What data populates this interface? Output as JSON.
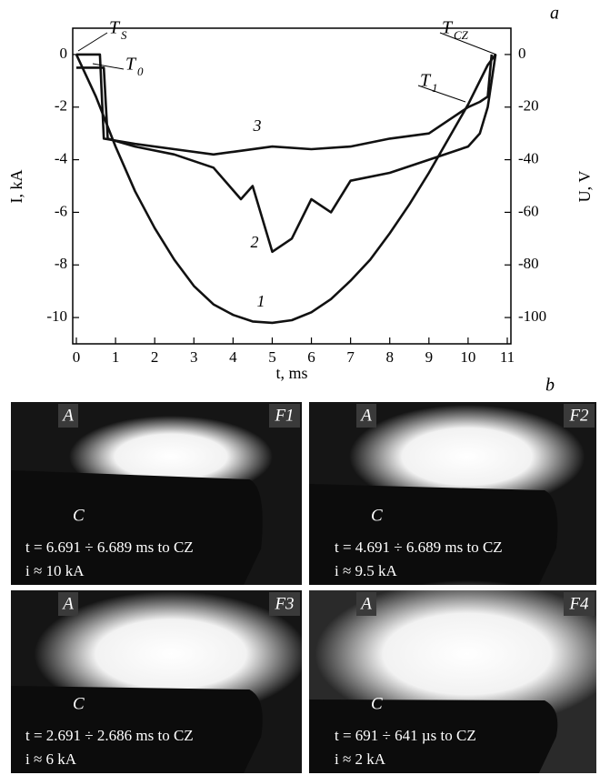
{
  "chart_data": {
    "type": "line",
    "panel_label": "a",
    "xlabel": "t, ms",
    "ylabel": "I, kA",
    "y2label": "U, V",
    "xlim": [
      0,
      11
    ],
    "xticks": [
      0,
      1,
      2,
      3,
      4,
      5,
      6,
      7,
      8,
      9,
      10,
      11
    ],
    "ylim": [
      -11,
      1
    ],
    "yticks": [
      0,
      -2,
      -4,
      -6,
      -8,
      -10
    ],
    "y2lim": [
      -110,
      10
    ],
    "y2ticks": [
      0,
      -20,
      -40,
      -60,
      -80,
      -100
    ],
    "series": [
      {
        "name": "1",
        "color": "#111111",
        "x": [
          0,
          0.5,
          1,
          1.5,
          2,
          2.5,
          3,
          3.5,
          4,
          4.5,
          5,
          5.5,
          6,
          6.5,
          7,
          7.5,
          8,
          8.5,
          9,
          9.5,
          10,
          10.5,
          10.7
        ],
        "values": [
          0,
          -1.6,
          -3.5,
          -5.2,
          -6.6,
          -7.8,
          -8.8,
          -9.5,
          -9.9,
          -10.15,
          -10.2,
          -10.1,
          -9.8,
          -9.3,
          -8.6,
          -7.8,
          -6.8,
          -5.7,
          -4.5,
          -3.2,
          -1.9,
          -0.4,
          0
        ]
      },
      {
        "name": "2",
        "color": "#111111",
        "axis": "y2",
        "x": [
          0,
          0.7,
          0.8,
          1.5,
          2.5,
          3.5,
          4.2,
          4.5,
          5,
          5.5,
          6,
          6.5,
          7,
          8,
          9,
          10,
          10.3,
          10.5,
          10.7
        ],
        "values": [
          -5,
          -5,
          -32,
          -35,
          -38,
          -43,
          -55,
          -50,
          -75,
          -70,
          -55,
          -60,
          -48,
          -45,
          -40,
          -35,
          -30,
          -20,
          0
        ]
      },
      {
        "name": "3",
        "color": "#111111",
        "axis": "y2",
        "x": [
          0,
          0.6,
          0.7,
          1.5,
          2.5,
          3.5,
          4,
          5,
          6,
          7,
          8,
          9,
          9.5,
          10,
          10.3,
          10.5,
          10.6
        ],
        "values": [
          0,
          0,
          -32,
          -34,
          -36,
          -38,
          -37,
          -35,
          -36,
          -35,
          -32,
          -30,
          -25,
          -20,
          -18,
          -16,
          0
        ]
      }
    ],
    "annotations": [
      {
        "text": "T",
        "sub": "S"
      },
      {
        "text": "T",
        "sub": "0"
      },
      {
        "text": "T",
        "sub": "CZ"
      },
      {
        "text": "T",
        "sub": "1"
      }
    ]
  },
  "photos": {
    "panel_label": "b",
    "panels": [
      {
        "anode": "A",
        "frame": "F1",
        "cathode": "C",
        "time": "t = 6.691 ÷ 6.689 ms to CZ",
        "current": "i ≈ 10 kA"
      },
      {
        "anode": "A",
        "frame": "F2",
        "cathode": "C",
        "time": "t = 4.691 ÷ 6.689 ms to CZ",
        "current": "i ≈ 9.5 kA"
      },
      {
        "anode": "A",
        "frame": "F3",
        "cathode": "C",
        "time": "t = 2.691 ÷ 2.686 ms to CZ",
        "current": "i ≈ 6 kA"
      },
      {
        "anode": "A",
        "frame": "F4",
        "cathode": "C",
        "time": "t = 691 ÷ 641 µs to CZ",
        "current": "i ≈ 2 kA"
      }
    ]
  }
}
